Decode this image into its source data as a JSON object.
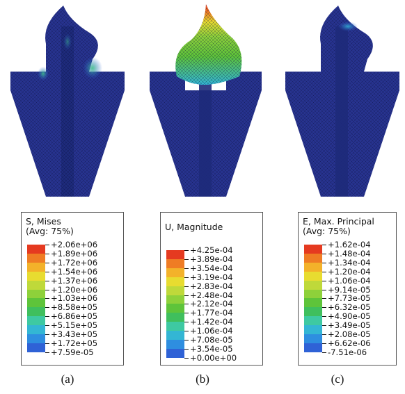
{
  "palette": [
    "#2a3fb8",
    "#2f62d6",
    "#2e8ee0",
    "#33b6d4",
    "#3ec9a2",
    "#3fbf5d",
    "#5ec43a",
    "#8ed13a",
    "#bfd93a",
    "#e8dc30",
    "#f3b22a",
    "#ef7c24",
    "#e53a20"
  ],
  "mesh_base_color": "#27338f",
  "panels": [
    {
      "id": "a",
      "caption": "(a)",
      "legend": {
        "title_line1": "S, Mises",
        "title_line2": "(Avg: 75%)",
        "values": [
          "+2.06e+06",
          "+1.89e+06",
          "+1.72e+06",
          "+1.54e+06",
          "+1.37e+06",
          "+1.20e+06",
          "+1.03e+06",
          "+8.58e+05",
          "+6.86e+05",
          "+5.15e+05",
          "+3.43e+05",
          "+1.72e+05",
          "+7.59e-05"
        ]
      }
    },
    {
      "id": "b",
      "caption": "(b)",
      "legend": {
        "title_line1": "U, Magnitude",
        "title_line2": "",
        "values": [
          "+4.25e-04",
          "+3.89e-04",
          "+3.54e-04",
          "+3.19e-04",
          "+2.83e-04",
          "+2.48e-04",
          "+2.12e-04",
          "+1.77e-04",
          "+1.42e-04",
          "+1.06e-04",
          "+7.08e-05",
          "+3.54e-05",
          "+0.00e+00"
        ]
      }
    },
    {
      "id": "c",
      "caption": "(c)",
      "legend": {
        "title_line1": "E, Max. Principal",
        "title_line2": "(Avg: 75%)",
        "values": [
          "+1.62e-04",
          "+1.48e-04",
          "+1.34e-04",
          "+1.20e-04",
          "+1.06e-04",
          "+9.14e-05",
          "+7.73e-05",
          "+6.32e-05",
          "+4.90e-05",
          "+3.49e-05",
          "+2.08e-05",
          "+6.62e-06",
          "-7.51e-06"
        ]
      }
    }
  ]
}
